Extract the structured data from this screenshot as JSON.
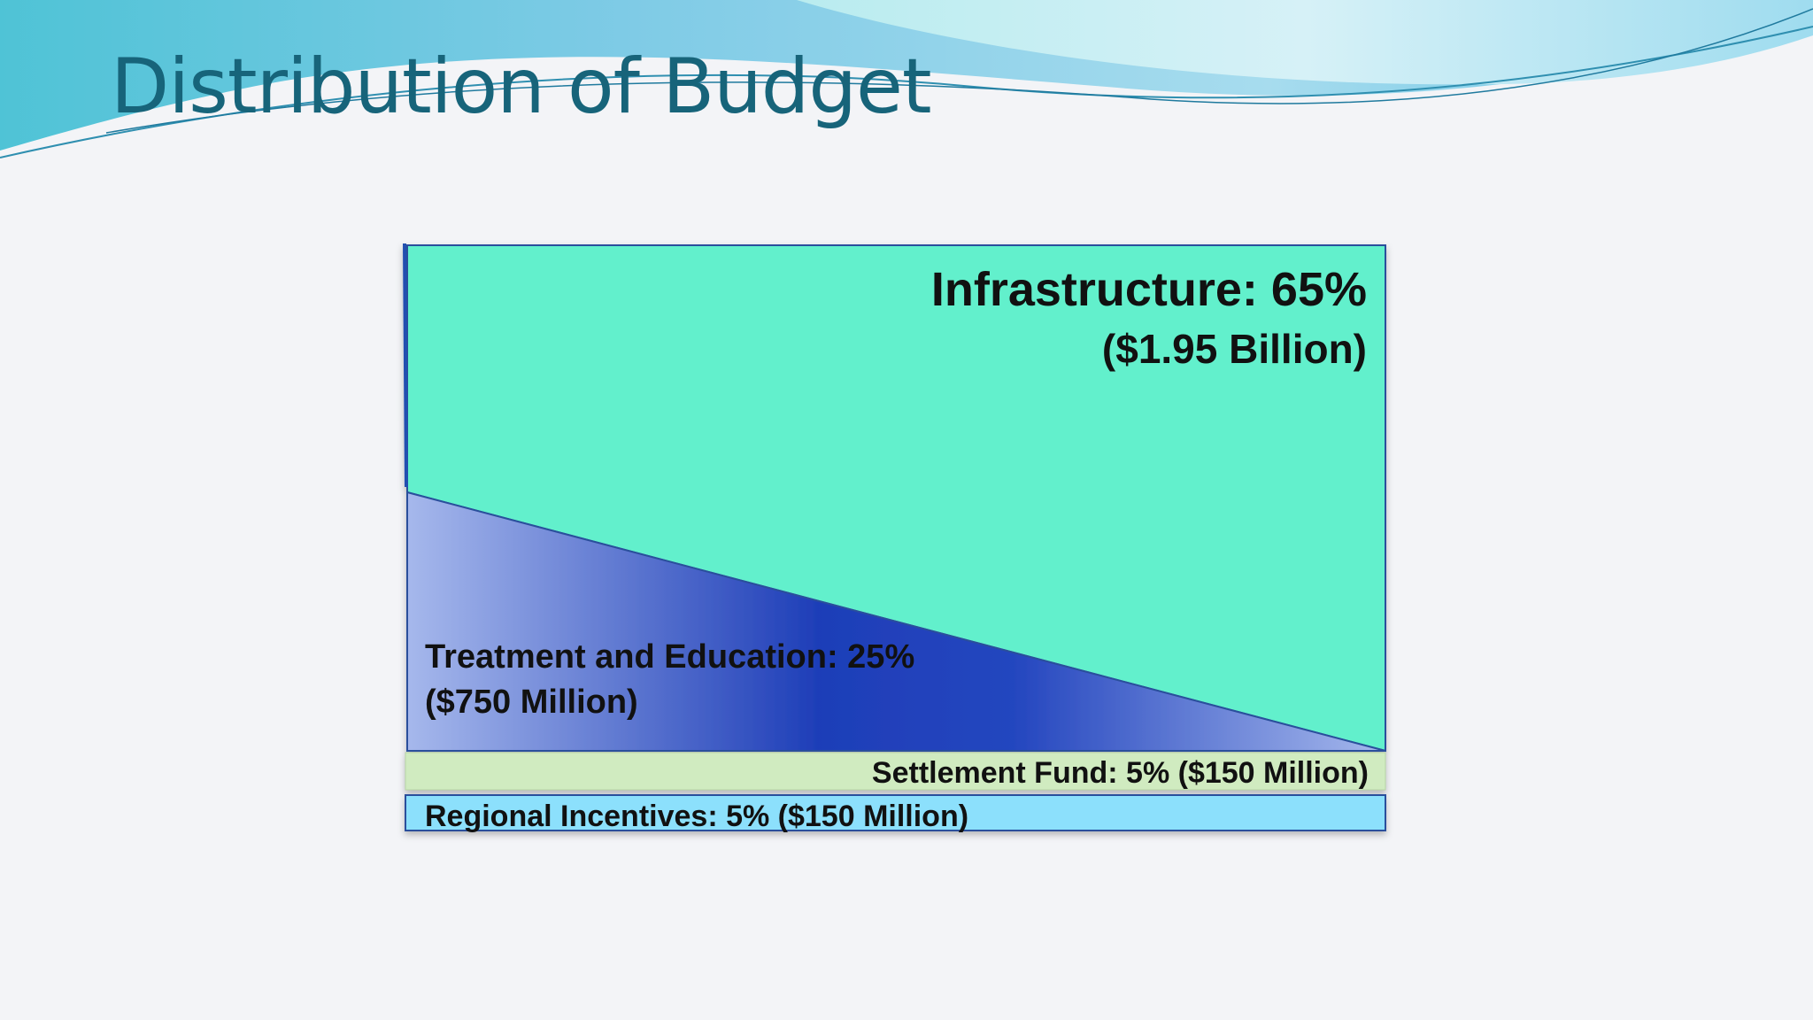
{
  "slide": {
    "title": "Distribution of Budget"
  },
  "colors": {
    "title": "#17647a",
    "infrastructure": "#62f0cc",
    "treatment_education_dark": "#1e3eb8",
    "treatment_education_light": "#a6b8ec",
    "settlement_fund": "#d0ebc0",
    "regional_incentives": "#8ce0fc",
    "border": "#2a4f9c"
  },
  "chart_data": {
    "type": "area",
    "title": "Distribution of Budget",
    "series": [
      {
        "key": "infrastructure",
        "label": "Infrastructure: 65%",
        "amount": "($1.95 Billion)",
        "percent": 65
      },
      {
        "key": "treatment_education",
        "label": "Treatment and Education: 25%",
        "amount": "($750 Million)",
        "percent": 25
      },
      {
        "key": "settlement_fund",
        "label": "Settlement Fund: 5% ($150 Million)",
        "percent": 5
      },
      {
        "key": "regional_incentives",
        "label": "Regional Incentives: 5% ($150 Million)",
        "percent": 5
      }
    ]
  }
}
